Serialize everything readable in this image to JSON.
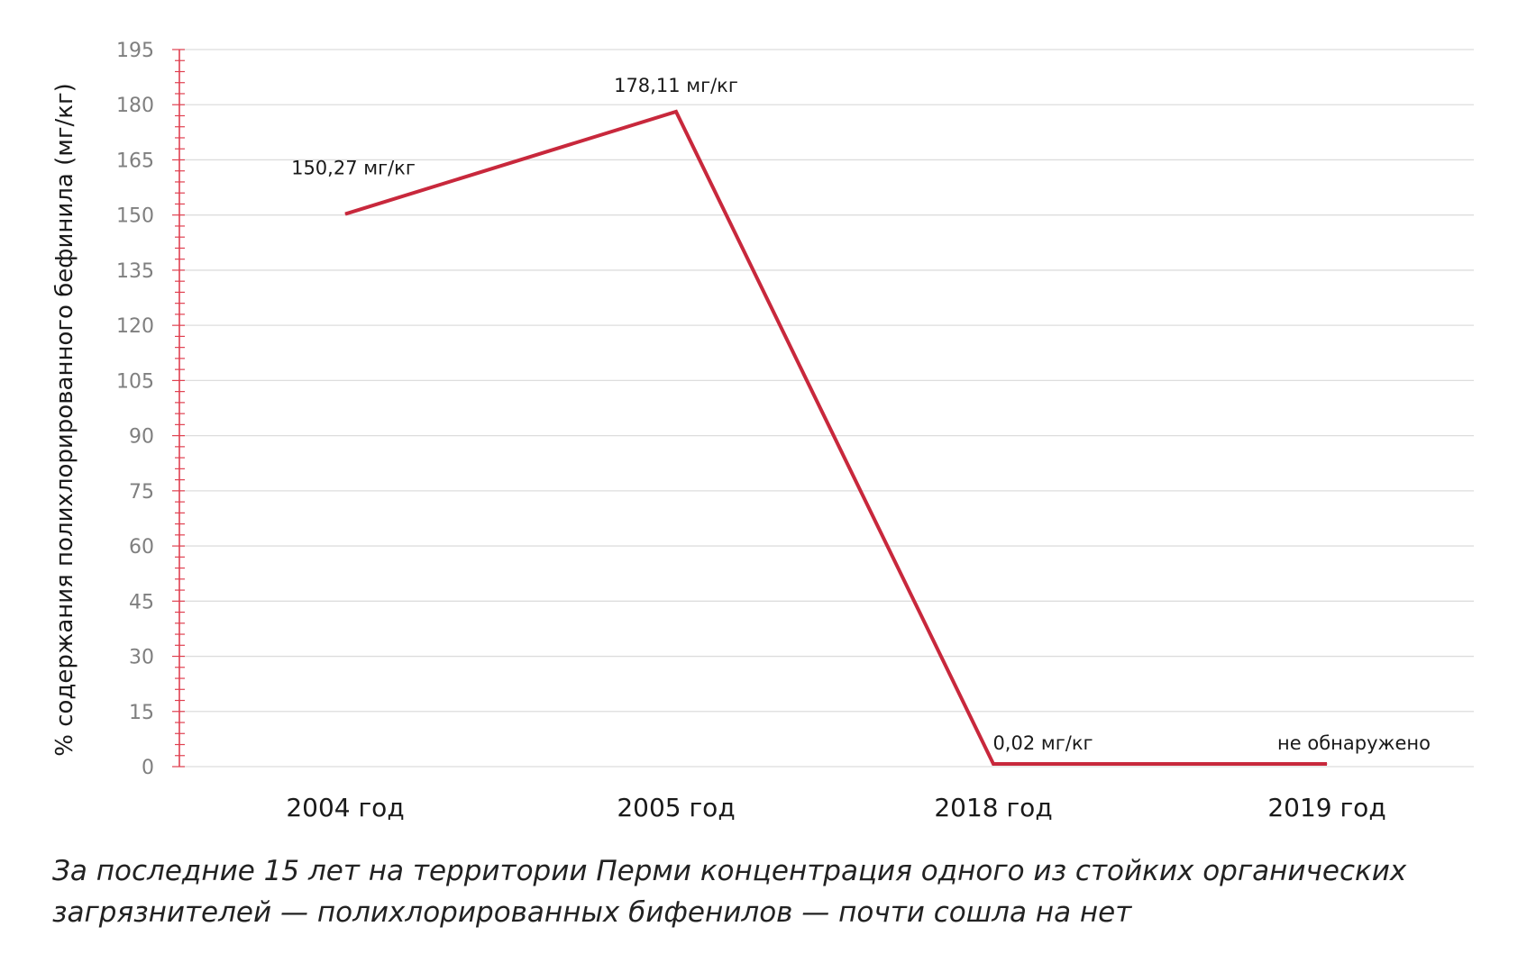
{
  "caption": "За последние 15 лет на территории Перми концентрация одного из стойких органических загрязнителей — полихлорированных бифенилов — почти сошла на нет",
  "chart_data": {
    "type": "line",
    "ylabel": "% содержания полихлорированного бефинила (мг/кг)",
    "xlabel": "",
    "categories": [
      "2004 год",
      "2005 год",
      "2018 год",
      "2019 год"
    ],
    "series": [
      {
        "values": [
          150.27,
          178.11,
          0.02,
          0
        ]
      }
    ],
    "data_labels": [
      "150,27 мг/кг",
      "178,11 мг/кг",
      "0,02 мг/кг",
      "не обнаружено"
    ],
    "yticks": [
      0,
      15,
      30,
      45,
      60,
      75,
      90,
      105,
      120,
      135,
      150,
      165,
      180,
      195
    ],
    "ylim": [
      0,
      195
    ],
    "grid": true,
    "line_color": "#c8283c",
    "axis_color": "#e04050",
    "grid_color": "#dddddd",
    "tick_color": "#7f7f7f"
  }
}
